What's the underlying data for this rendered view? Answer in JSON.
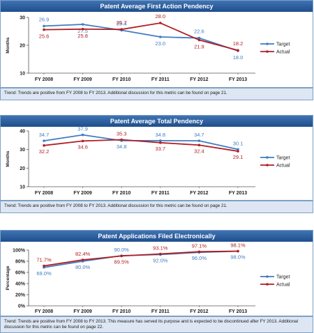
{
  "colors": {
    "target": "#3e7cc2",
    "actual": "#b11e23",
    "target_label": "#3e7cc2",
    "actual_label": "#b11e23"
  },
  "chart_data": [
    {
      "type": "line",
      "title": "Patent Average First Action Pendency",
      "ylabel": "Months",
      "ylim": [
        10,
        30
      ],
      "yticks": [
        "30",
        "20",
        "10"
      ],
      "categories": [
        "FY 2008",
        "FY 2009",
        "FY 2010",
        "FY 2011",
        "FY 2012",
        "FY 2013"
      ],
      "series": [
        {
          "name": "Target",
          "values": [
            26.9,
            27.5,
            25.4,
            23.0,
            22.6,
            18.0
          ],
          "labels": [
            "26.9",
            "27.5",
            "25.4",
            "23.0",
            "22.6",
            "18.0"
          ]
        },
        {
          "name": "Actual",
          "values": [
            25.6,
            25.8,
            25.7,
            28.0,
            21.9,
            18.2
          ],
          "labels": [
            "25.6",
            "25.8",
            "25.7",
            "28.0",
            "21.9",
            "18.2"
          ]
        }
      ],
      "legend": "right",
      "trend": "Trend:  Trends are positive from FY 2008 to FY 2013.  Additional discussion for this metric can be found on page 21."
    },
    {
      "type": "line",
      "title": "Patent Average Total Pendency",
      "ylabel": "Months",
      "ylim": [
        10,
        40
      ],
      "yticks": [
        "40",
        "30",
        "20",
        "10"
      ],
      "categories": [
        "FY 2008",
        "FY 2009",
        "FY 2010",
        "FY 2011",
        "FY 2012",
        "FY 2013"
      ],
      "series": [
        {
          "name": "Target",
          "values": [
            34.7,
            37.9,
            34.8,
            34.8,
            34.7,
            30.1
          ],
          "labels": [
            "34.7",
            "37.9",
            "34.8",
            "34.8",
            "34.7",
            "30.1"
          ]
        },
        {
          "name": "Actual",
          "values": [
            32.2,
            34.6,
            35.3,
            33.7,
            32.4,
            29.1
          ],
          "labels": [
            "32.2",
            "34.6",
            "35.3",
            "33.7",
            "32.4",
            "29.1"
          ]
        }
      ],
      "legend": "right",
      "trend": "Trend:  Trends are positive from FY 2008 to FY 2013.  Additional discussion for this metric can be found on page 21."
    },
    {
      "type": "line",
      "title": "Patent Applications Filed Electronically",
      "ylabel": "Percentage",
      "ylim": [
        0,
        100
      ],
      "yticks": [
        "100%",
        "80%",
        "60%",
        "40%",
        "20%",
        "0%"
      ],
      "categories": [
        "FY 2008",
        "FY 2009",
        "FY 2010",
        "FY 2011",
        "FY 2012",
        "FY 2013"
      ],
      "series": [
        {
          "name": "Target",
          "values": [
            69.0,
            80.0,
            90.0,
            92.0,
            96.0,
            98.0
          ],
          "labels": [
            "69.0%",
            "80.0%",
            "90.0%",
            "92.0%",
            "96.0%",
            "98.0%"
          ]
        },
        {
          "name": "Actual",
          "values": [
            71.7,
            82.4,
            89.5,
            93.1,
            97.1,
            98.1
          ],
          "labels": [
            "71.7%",
            "82.4%",
            "89.5%",
            "93.1%",
            "97.1%",
            "98.1%"
          ]
        }
      ],
      "legend": "right",
      "trend": "Trend:  Trends are positive from FY 2008 to FY 2013.  This measure has served its purpose and is expected to be discontinued after FY 2013.  Additional discussion for this metric can be found on page 22."
    }
  ]
}
